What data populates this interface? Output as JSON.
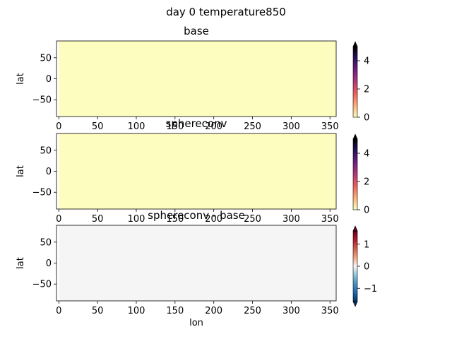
{
  "figure": {
    "title": "day 0 temperature850"
  },
  "chart_data": [
    {
      "type": "heatmap",
      "title": "base",
      "xlabel": "",
      "ylabel": "lat",
      "x_ticks": [
        0,
        50,
        100,
        150,
        200,
        250,
        300,
        350
      ],
      "y_ticks": [
        50,
        0,
        -50
      ],
      "xlim": [
        -3,
        358
      ],
      "ylim": [
        -90,
        90
      ],
      "field": {
        "lon_range": [
          0,
          358
        ],
        "lat_range": [
          -90,
          90
        ],
        "value": 0
      },
      "colorbar": {
        "colormap": "magma_r",
        "range": [
          0,
          5
        ],
        "ticks": [
          0,
          2,
          4
        ],
        "extend": "max",
        "colors": [
          "#fcfdbf",
          "#feb078",
          "#f1605d",
          "#b5367a",
          "#721f81",
          "#2c115f",
          "#000004"
        ]
      },
      "fill_color": "#fcfdbf"
    },
    {
      "type": "heatmap",
      "title": "sphereconv",
      "xlabel": "",
      "ylabel": "lat",
      "x_ticks": [
        0,
        50,
        100,
        150,
        200,
        250,
        300,
        350
      ],
      "y_ticks": [
        50,
        0,
        -50
      ],
      "xlim": [
        -3,
        358
      ],
      "ylim": [
        -90,
        90
      ],
      "field": {
        "lon_range": [
          0,
          358
        ],
        "lat_range": [
          -90,
          90
        ],
        "value": 0
      },
      "colorbar": {
        "colormap": "magma_r",
        "range": [
          0,
          5
        ],
        "ticks": [
          0,
          2,
          4
        ],
        "extend": "max",
        "colors": [
          "#fcfdbf",
          "#feb078",
          "#f1605d",
          "#b5367a",
          "#721f81",
          "#2c115f",
          "#000004"
        ]
      },
      "fill_color": "#fcfdbf"
    },
    {
      "type": "heatmap",
      "title": "sphereconv - base",
      "xlabel": "lon",
      "ylabel": "lat",
      "x_ticks": [
        0,
        50,
        100,
        150,
        200,
        250,
        300,
        350
      ],
      "y_ticks": [
        50,
        0,
        -50
      ],
      "xlim": [
        -3,
        358
      ],
      "ylim": [
        -90,
        90
      ],
      "field": {
        "lon_range": [
          0,
          358
        ],
        "lat_range": [
          -90,
          90
        ],
        "value": 0
      },
      "colorbar": {
        "colormap": "RdBu_r",
        "range": [
          -1.6,
          1.6
        ],
        "ticks": [
          1,
          0,
          -1
        ],
        "extend": "both",
        "colors": [
          "#053061",
          "#2166ac",
          "#4393c3",
          "#92c5de",
          "#f7f7f7",
          "#f4a582",
          "#d6604d",
          "#b2182b",
          "#67001f"
        ]
      },
      "fill_color": "#f5f5f5"
    }
  ]
}
